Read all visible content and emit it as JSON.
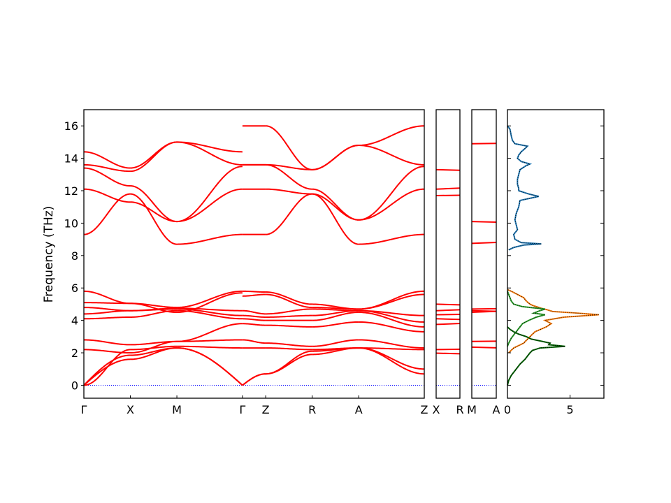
{
  "chart_data": {
    "type": "line",
    "ylabel": "Frequency (THz)",
    "ylim": [
      -0.8,
      17
    ],
    "yticks": [
      0,
      2,
      4,
      6,
      8,
      10,
      12,
      14,
      16
    ],
    "band_color": "#ff0000",
    "zero_line_color": "#0000ff",
    "panels": [
      {
        "name": "main-band-panel",
        "labels": [
          "Γ",
          "X",
          "M",
          "Γ",
          "Z",
          "R",
          "A",
          "Z"
        ],
        "segment_lengths": [
          1,
          1,
          1.41,
          0.5,
          1,
          1,
          1.41
        ],
        "segments": [
          {
            "from": "Γ",
            "to": "X",
            "bands": [
              [
                0,
                1.6
              ],
              [
                0,
                1.85
              ],
              [
                0,
                2.2
              ],
              [
                2.2,
                2.0
              ],
              [
                2.8,
                2.5
              ],
              [
                4.1,
                4.2
              ],
              [
                4.4,
                4.6
              ],
              [
                4.8,
                4.6
              ],
              [
                5.1,
                5.05
              ],
              [
                5.8,
                5.05
              ],
              [
                9.3,
                11.8
              ],
              [
                12.1,
                11.3
              ],
              [
                13.4,
                12.3
              ],
              [
                13.6,
                13.2
              ],
              [
                14.4,
                13.4
              ]
            ]
          },
          {
            "from": "X",
            "to": "M",
            "bands": [
              [
                1.6,
                2.3
              ],
              [
                1.85,
                2.3
              ],
              [
                2.2,
                2.4
              ],
              [
                2.0,
                2.7
              ],
              [
                2.5,
                2.7
              ],
              [
                4.2,
                4.6
              ],
              [
                4.6,
                4.7
              ],
              [
                4.6,
                4.75
              ],
              [
                5.05,
                4.5
              ],
              [
                5.05,
                4.8
              ],
              [
                11.8,
                8.7
              ],
              [
                11.3,
                10.1
              ],
              [
                12.3,
                10.1
              ],
              [
                13.2,
                15.0
              ],
              [
                13.4,
                15.0
              ]
            ]
          },
          {
            "from": "M",
            "to": "Γ",
            "bands": [
              [
                2.3,
                0
              ],
              [
                2.3,
                0
              ],
              [
                2.4,
                2.3
              ],
              [
                2.7,
                2.8
              ],
              [
                2.7,
                3.8
              ],
              [
                4.6,
                4.1
              ],
              [
                4.7,
                4.3
              ],
              [
                4.75,
                4.6
              ],
              [
                4.5,
                5.7
              ],
              [
                4.8,
                5.8
              ],
              [
                8.7,
                9.3
              ],
              [
                10.1,
                12.1
              ],
              [
                10.1,
                13.5
              ],
              [
                15.0,
                14.4
              ],
              [
                15.0,
                13.6
              ]
            ]
          },
          {
            "from": "Γ",
            "to": "Z",
            "bands": [
              [
                0,
                0.7
              ],
              [
                0,
                0.7
              ],
              [
                2.3,
                2.3
              ],
              [
                2.8,
                2.6
              ],
              [
                3.8,
                3.7
              ],
              [
                4.1,
                4.0
              ],
              [
                4.3,
                4.2
              ],
              [
                4.6,
                4.4
              ],
              [
                5.5,
                5.6
              ],
              [
                5.8,
                5.75
              ],
              [
                9.3,
                9.3
              ],
              [
                12.1,
                12.1
              ],
              [
                13.6,
                13.6
              ],
              [
                13.6,
                13.6
              ],
              [
                16.0,
                16.0
              ]
            ]
          },
          {
            "from": "Z",
            "to": "R",
            "bands": [
              [
                0.7,
                1.9
              ],
              [
                0.7,
                2.1
              ],
              [
                2.3,
                2.2
              ],
              [
                2.6,
                2.4
              ],
              [
                3.7,
                3.6
              ],
              [
                4.0,
                4.0
              ],
              [
                4.2,
                4.3
              ],
              [
                4.4,
                4.7
              ],
              [
                5.6,
                4.8
              ],
              [
                5.75,
                5.0
              ],
              [
                9.3,
                11.8
              ],
              [
                12.1,
                11.8
              ],
              [
                13.6,
                12.1
              ],
              [
                13.6,
                13.3
              ],
              [
                16.0,
                13.3
              ]
            ]
          },
          {
            "from": "R",
            "to": "A",
            "bands": [
              [
                1.9,
                2.3
              ],
              [
                2.1,
                2.3
              ],
              [
                2.2,
                2.3
              ],
              [
                2.4,
                2.8
              ],
              [
                3.6,
                3.9
              ],
              [
                4.0,
                4.5
              ],
              [
                4.3,
                4.6
              ],
              [
                4.7,
                4.6
              ],
              [
                4.8,
                4.7
              ],
              [
                5.0,
                4.7
              ],
              [
                11.8,
                8.7
              ],
              [
                11.8,
                10.2
              ],
              [
                12.1,
                10.2
              ],
              [
                13.3,
                14.8
              ],
              [
                13.3,
                14.8
              ]
            ]
          },
          {
            "from": "A",
            "to": "Z",
            "bands": [
              [
                2.3,
                0.7
              ],
              [
                2.3,
                1.0
              ],
              [
                2.3,
                2.2
              ],
              [
                2.8,
                2.3
              ],
              [
                3.9,
                3.3
              ],
              [
                4.5,
                3.6
              ],
              [
                4.6,
                3.9
              ],
              [
                4.6,
                4.3
              ],
              [
                4.7,
                5.6
              ],
              [
                4.7,
                5.8
              ],
              [
                8.7,
                9.3
              ],
              [
                10.2,
                12.1
              ],
              [
                10.2,
                13.5
              ],
              [
                14.8,
                13.6
              ],
              [
                14.8,
                16.0
              ]
            ]
          }
        ]
      },
      {
        "name": "x-r-panel",
        "labels": [
          "X",
          "R"
        ],
        "flat_bands": [
          0,
          1.98,
          2.2,
          3.75,
          4.1,
          4.35,
          4.6,
          5.0,
          11.7,
          12.1,
          13.3
        ]
      },
      {
        "name": "m-a-panel",
        "labels": [
          "M",
          "A"
        ],
        "flat_bands": [
          0,
          2.35,
          2.7,
          4.5,
          4.6,
          4.7,
          8.75,
          10.1,
          14.9
        ]
      }
    ],
    "dos": {
      "xlim": [
        0,
        7.7
      ],
      "xticks": [
        0,
        5
      ],
      "series": [
        {
          "color": "#1f77b4",
          "freq": [
            8.35,
            8.5,
            8.65,
            8.72,
            8.8,
            9.0,
            9.3,
            9.6,
            9.9,
            10.2,
            10.6,
            11.0,
            11.4,
            11.65,
            11.8,
            12.0,
            12.15,
            12.4,
            12.7,
            13.0,
            13.3,
            13.55,
            13.65,
            13.8,
            14.0,
            14.2,
            14.4,
            14.6,
            14.75,
            14.9,
            15.1,
            15.4,
            15.8,
            16.0
          ],
          "dos": [
            0.1,
            0.5,
            1.3,
            2.7,
            1.1,
            0.6,
            0.5,
            0.8,
            0.7,
            0.6,
            0.7,
            0.9,
            1.0,
            2.5,
            1.7,
            0.9,
            0.9,
            0.8,
            0.8,
            0.9,
            1.0,
            1.5,
            1.8,
            1.1,
            0.8,
            0.9,
            1.1,
            1.4,
            1.6,
            0.6,
            0.4,
            0.3,
            0.2,
            0.0
          ]
        },
        {
          "color": "#ff7f0e",
          "freq": [
            2.0,
            2.3,
            2.6,
            3.0,
            3.3,
            3.6,
            3.8,
            4.0,
            4.2,
            4.35,
            4.45,
            4.55,
            4.65,
            4.75,
            4.9,
            5.0,
            5.2,
            5.4,
            5.6,
            5.8,
            5.9
          ],
          "dos": [
            0.1,
            0.5,
            1.3,
            1.8,
            2.2,
            3.1,
            3.5,
            3.0,
            4.5,
            7.3,
            5.6,
            3.6,
            3.2,
            2.7,
            2.1,
            1.8,
            1.5,
            1.3,
            0.8,
            0.3,
            0.0
          ]
        },
        {
          "color": "#2ca02c",
          "freq": [
            2.4,
            2.6,
            2.9,
            3.2,
            3.5,
            3.8,
            4.0,
            4.2,
            4.35,
            4.45,
            4.6,
            4.7,
            4.85,
            5.0,
            5.2,
            5.4,
            5.6,
            5.8
          ],
          "dos": [
            0.0,
            0.1,
            0.3,
            0.6,
            0.9,
            1.2,
            1.7,
            2.3,
            3.0,
            2.1,
            2.6,
            3.0,
            1.2,
            0.5,
            0.3,
            0.2,
            0.1,
            0.0
          ]
        },
        {
          "color": "#006400",
          "freq": [
            0.0,
            0.3,
            0.6,
            1.0,
            1.3,
            1.6,
            1.8,
            2.0,
            2.15,
            2.3,
            2.4,
            2.5,
            2.6,
            2.7,
            2.85,
            3.0,
            3.15,
            3.3,
            3.45,
            3.6
          ],
          "dos": [
            0.0,
            0.1,
            0.3,
            0.7,
            1.0,
            1.4,
            1.6,
            1.8,
            2.0,
            2.6,
            4.6,
            3.3,
            3.4,
            2.8,
            1.9,
            1.5,
            0.9,
            0.5,
            0.2,
            0.0
          ]
        }
      ],
      "total_color": "#000000"
    }
  }
}
